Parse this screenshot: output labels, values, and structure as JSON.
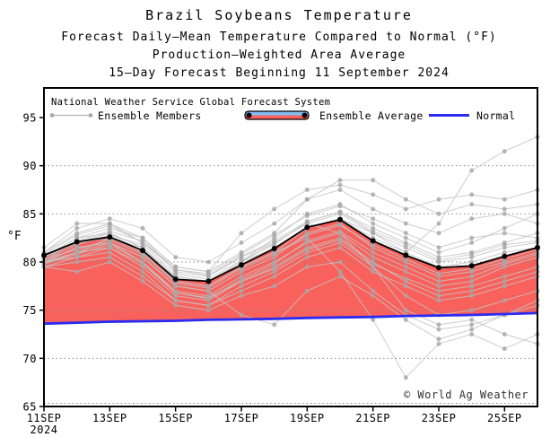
{
  "titles": [
    "Brazil Soybeans Temperature",
    "Forecast Daily—Mean Temperature Compared to Normal (°F)",
    "Production—Weighted Area Average",
    "15—Day Forecast Beginning 11 September 2024"
  ],
  "legend": {
    "header": "National Weather Service Global Forecast System",
    "members_label": "Ensemble Members",
    "average_label": "Ensemble Average",
    "normal_label": "Normal"
  },
  "watermark": "© World Ag Weather",
  "chart_data": {
    "type": "line",
    "title": "Brazil Soybeans Temperature",
    "xlabel": "",
    "ylabel": "°F",
    "x": [
      "11SEP",
      "12SEP",
      "13SEP",
      "14SEP",
      "15SEP",
      "16SEP",
      "17SEP",
      "18SEP",
      "19SEP",
      "20SEP",
      "21SEP",
      "22SEP",
      "23SEP",
      "24SEP",
      "25SEP",
      "26SEP"
    ],
    "x_tick_labels": [
      "11SEP",
      "13SEP",
      "15SEP",
      "17SEP",
      "19SEP",
      "21SEP",
      "23SEP",
      "25SEP"
    ],
    "x_tick_indices": [
      0,
      2,
      4,
      6,
      8,
      10,
      12,
      14
    ],
    "x_tick_year": "2024",
    "y_ticks": [
      65,
      70,
      75,
      80,
      85,
      90,
      95
    ],
    "y_grid": [
      70,
      75,
      80,
      85,
      90
    ],
    "ylim": [
      64.7,
      98.1
    ],
    "grid": "dotted-horizontal",
    "legend_position": "top-inside",
    "colors": {
      "fill": "#f9615c",
      "normal": "#2b2bf0",
      "average": "#000000",
      "member_line": "#c4c4c4",
      "member_dot": "#a6a6a6",
      "legend_band_blue": "#85bdf2",
      "grid": "#8a8a8a"
    },
    "average": [
      80.7,
      82.1,
      82.6,
      81.2,
      78.2,
      78.0,
      79.7,
      81.4,
      83.6,
      84.4,
      82.2,
      80.7,
      79.4,
      79.6,
      80.6,
      81.5
    ],
    "normal": [
      73.6,
      73.7,
      73.8,
      73.85,
      73.9,
      74.0,
      74.05,
      74.1,
      74.2,
      74.25,
      74.3,
      74.4,
      74.45,
      74.5,
      74.6,
      74.7
    ],
    "members": [
      [
        80.5,
        82.5,
        83.5,
        82.5,
        79.0,
        78.5,
        80.5,
        82.0,
        84.0,
        85.0,
        83.0,
        81.5,
        80.0,
        80.5,
        81.5,
        82.0
      ],
      [
        80.0,
        81.5,
        82.0,
        80.5,
        77.5,
        77.0,
        79.0,
        80.5,
        83.0,
        84.0,
        81.5,
        80.0,
        78.5,
        79.0,
        80.0,
        81.0
      ],
      [
        81.0,
        83.5,
        84.5,
        83.5,
        80.5,
        80.0,
        82.0,
        84.0,
        86.5,
        87.5,
        85.5,
        84.0,
        83.0,
        84.5,
        85.0,
        84.0
      ],
      [
        81.5,
        84.0,
        84.0,
        82.0,
        79.5,
        79.0,
        81.0,
        83.0,
        86.5,
        88.5,
        88.5,
        86.5,
        85.0,
        86.0,
        85.5,
        86.0
      ],
      [
        79.5,
        80.5,
        81.0,
        79.0,
        76.0,
        75.5,
        77.0,
        78.5,
        80.5,
        81.5,
        79.0,
        77.5,
        76.0,
        76.5,
        77.5,
        78.5
      ],
      [
        80.0,
        81.0,
        82.5,
        81.5,
        78.0,
        77.5,
        79.5,
        81.0,
        83.5,
        84.5,
        82.5,
        81.0,
        79.5,
        80.0,
        81.0,
        81.5
      ],
      [
        80.5,
        82.0,
        83.0,
        81.0,
        78.5,
        78.0,
        80.0,
        82.5,
        85.0,
        86.0,
        84.0,
        82.5,
        81.0,
        82.0,
        83.5,
        85.0
      ],
      [
        79.5,
        79.0,
        80.0,
        78.0,
        75.5,
        75.0,
        76.5,
        77.5,
        79.5,
        80.0,
        77.0,
        74.5,
        73.0,
        73.5,
        74.5,
        75.5
      ],
      [
        80.0,
        81.5,
        82.0,
        80.0,
        77.0,
        76.5,
        78.5,
        80.0,
        82.0,
        83.0,
        80.5,
        79.0,
        77.5,
        78.0,
        79.5,
        80.5
      ],
      [
        80.5,
        82.0,
        82.5,
        81.0,
        78.0,
        77.5,
        79.5,
        81.0,
        82.5,
        79.0,
        74.0,
        68.0,
        71.5,
        72.5,
        71.0,
        72.5
      ],
      [
        80.5,
        82.5,
        83.0,
        81.5,
        78.5,
        78.0,
        80.0,
        81.5,
        83.5,
        84.5,
        83.0,
        81.0,
        84.0,
        89.5,
        91.5,
        93.0
      ],
      [
        80.0,
        80.5,
        81.5,
        79.5,
        76.5,
        76.0,
        78.0,
        79.5,
        81.5,
        82.5,
        80.0,
        78.0,
        76.5,
        77.0,
        78.0,
        79.0
      ],
      [
        80.5,
        82.0,
        83.0,
        81.5,
        78.5,
        78.0,
        80.0,
        82.0,
        84.0,
        83.0,
        79.5,
        75.0,
        73.5,
        74.0,
        72.5,
        71.5
      ],
      [
        81.0,
        83.0,
        84.0,
        82.5,
        79.5,
        79.0,
        83.0,
        85.5,
        87.5,
        88.0,
        87.0,
        85.5,
        86.5,
        87.0,
        86.5,
        87.5
      ],
      [
        79.5,
        80.0,
        80.5,
        78.5,
        76.0,
        75.5,
        77.5,
        79.0,
        81.0,
        82.0,
        79.5,
        76.5,
        74.5,
        75.0,
        76.0,
        77.0
      ],
      [
        80.0,
        81.0,
        82.0,
        80.5,
        77.5,
        77.0,
        74.5,
        73.5,
        77.0,
        78.5,
        76.5,
        74.0,
        72.0,
        73.0,
        74.5,
        76.0
      ],
      [
        80.2,
        81.8,
        82.8,
        81.8,
        78.8,
        78.2,
        80.2,
        81.8,
        84.2,
        85.2,
        83.5,
        82.0,
        80.5,
        81.0,
        82.0,
        83.0
      ],
      [
        79.8,
        80.8,
        81.8,
        80.0,
        76.8,
        76.2,
        78.2,
        79.8,
        82.2,
        83.2,
        81.0,
        79.5,
        78.0,
        78.5,
        79.8,
        80.8
      ],
      [
        80.3,
        81.3,
        82.3,
        80.8,
        77.8,
        77.3,
        79.3,
        80.8,
        82.8,
        83.8,
        81.8,
        80.3,
        78.8,
        79.3,
        80.3,
        81.3
      ],
      [
        80.8,
        82.8,
        83.8,
        82.0,
        79.2,
        78.8,
        80.8,
        82.8,
        84.8,
        85.8,
        84.5,
        83.0,
        81.5,
        82.5,
        83.0,
        82.5
      ],
      [
        79.8,
        81.0,
        81.5,
        79.8,
        76.8,
        76.3,
        78.0,
        79.3,
        81.3,
        82.3,
        79.8,
        78.3,
        77.0,
        77.5,
        78.5,
        79.5
      ],
      [
        80.2,
        82.2,
        83.2,
        82.2,
        79.2,
        78.6,
        80.6,
        82.2,
        84.2,
        85.2,
        83.2,
        81.8,
        80.2,
        80.8,
        81.8,
        82.2
      ]
    ]
  }
}
